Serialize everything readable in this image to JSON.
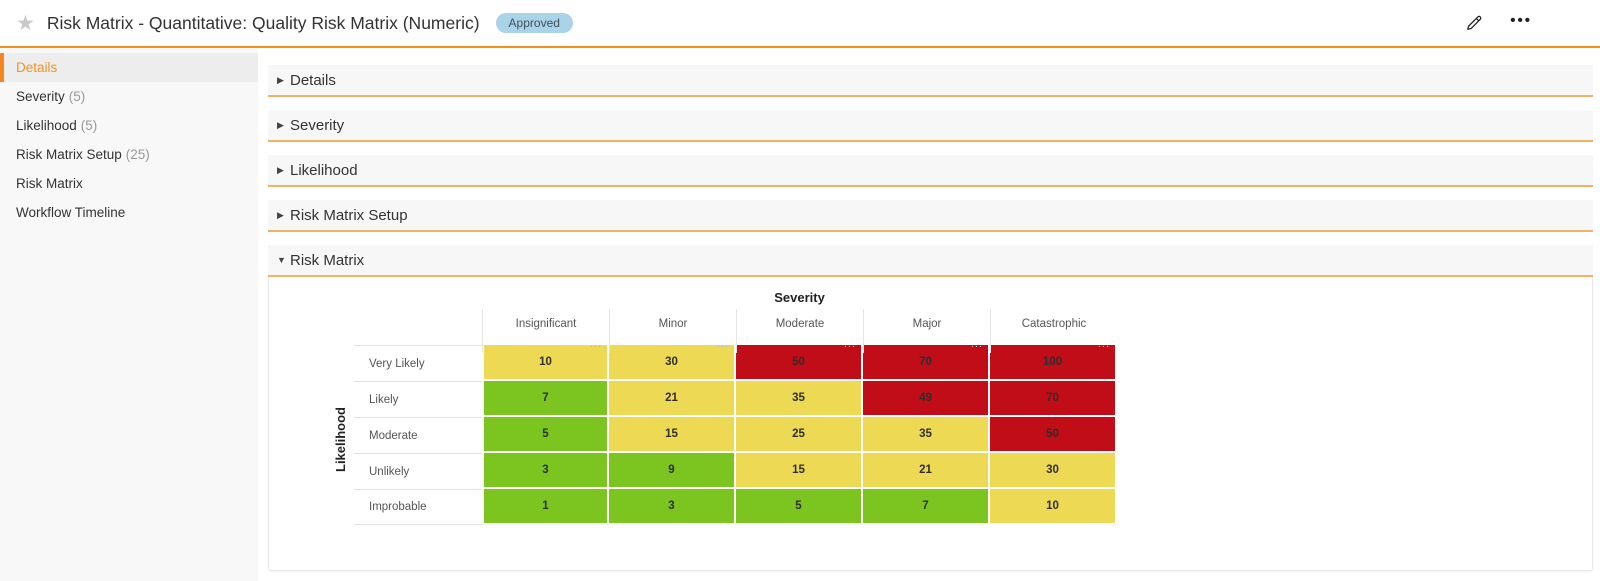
{
  "header": {
    "title": "Risk Matrix - Quantitative: Quality Risk Matrix (Numeric)",
    "status_badge": "Approved",
    "star_icon": "★",
    "ellipsis_icon": "•••"
  },
  "sidebar": {
    "items": [
      {
        "label": "Details",
        "count": "",
        "active": true
      },
      {
        "label": "Severity",
        "count": "(5)",
        "active": false
      },
      {
        "label": "Likelihood",
        "count": "(5)",
        "active": false
      },
      {
        "label": "Risk Matrix Setup",
        "count": "(25)",
        "active": false
      },
      {
        "label": "Risk Matrix",
        "count": "",
        "active": false
      },
      {
        "label": "Workflow Timeline",
        "count": "",
        "active": false
      }
    ]
  },
  "sections": [
    {
      "label": "Details",
      "expanded": false
    },
    {
      "label": "Severity",
      "expanded": false
    },
    {
      "label": "Likelihood",
      "expanded": false
    },
    {
      "label": "Risk Matrix Setup",
      "expanded": false
    },
    {
      "label": "Risk Matrix",
      "expanded": true
    }
  ],
  "icons": {
    "collapsed_arrow": "▶",
    "expanded_arrow": "▼"
  },
  "chart_data": {
    "type": "heatmap",
    "title": "Risk Matrix",
    "x_axis_title": "Severity",
    "y_axis_title": "Likelihood",
    "columns": [
      "Insignificant",
      "Minor",
      "Moderate",
      "Major",
      "Catastrophic"
    ],
    "rows": [
      "Very Likely",
      "Likely",
      "Moderate",
      "Unlikely",
      "Improbable"
    ],
    "values": [
      [
        10,
        30,
        50,
        70,
        100
      ],
      [
        7,
        21,
        35,
        49,
        70
      ],
      [
        5,
        15,
        25,
        35,
        50
      ],
      [
        3,
        9,
        15,
        21,
        30
      ],
      [
        1,
        3,
        5,
        7,
        10
      ]
    ],
    "levels": [
      [
        "yellow",
        "yellow",
        "red",
        "red",
        "red"
      ],
      [
        "green",
        "yellow",
        "yellow",
        "red",
        "red"
      ],
      [
        "green",
        "yellow",
        "yellow",
        "yellow",
        "red"
      ],
      [
        "green",
        "green",
        "yellow",
        "yellow",
        "yellow"
      ],
      [
        "green",
        "green",
        "green",
        "green",
        "yellow"
      ]
    ],
    "level_colors": {
      "green": "#7cc420",
      "yellow": "#eed955",
      "red": "#c00d18"
    },
    "column_menu_label": "..."
  }
}
